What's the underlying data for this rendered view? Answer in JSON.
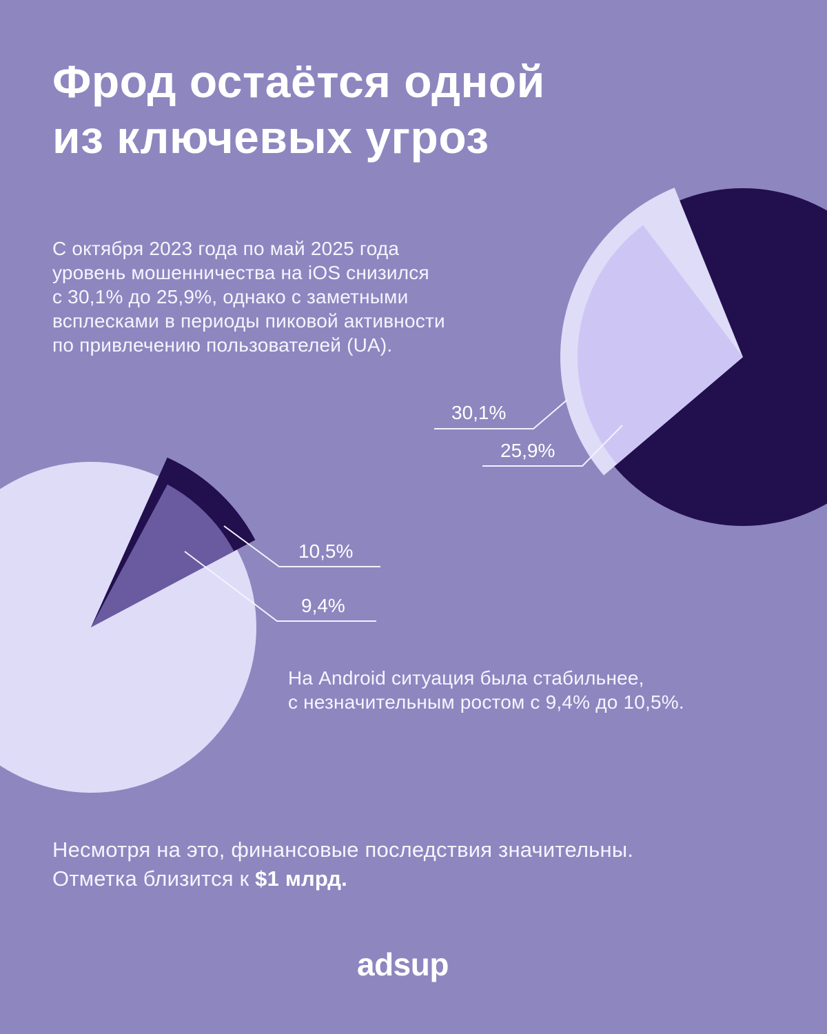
{
  "title": {
    "line1": "Фрод остаётся одной",
    "line2": "из ключевых угроз"
  },
  "ios_text": {
    "lines": [
      "С октября 2023 года по май 2025 года",
      "уровень мошенничества на iOS снизился",
      "с 30,1% до 25,9%, однако с заметными",
      "всплесками в периоды пиковой активности",
      "по привлечению пользователей (UA)."
    ]
  },
  "android_text": {
    "lines": [
      "На Android ситуация была стабильнее,",
      "с незначительным ростом с 9,4% до 10,5%."
    ]
  },
  "footer_text": {
    "line1": "Несмотря на это, финансовые последствия значительны.",
    "line2_prefix": "Отметка близится к ",
    "line2_bold": "$1 млрд."
  },
  "logo": "adsup",
  "colors": {
    "background": "#8e86bf",
    "dark": "#220f4e",
    "light": "#dfdcf8",
    "lavender": "#cdc6f5",
    "mid": "#6a5ba0",
    "text": "#ffffff"
  },
  "chart_data": [
    {
      "type": "pie",
      "title": "iOS fraud rate",
      "period": "Oct 2023 → May 2025",
      "series": [
        {
          "name": "Oct 2023",
          "value": 30.1,
          "label": "30,1%"
        },
        {
          "name": "May 2025",
          "value": 25.9,
          "label": "25,9%"
        }
      ],
      "remainder_color": "#220f4e",
      "legend": "none, leader-line labels on left"
    },
    {
      "type": "pie",
      "title": "Android fraud rate",
      "period": "Oct 2023 → May 2025",
      "series": [
        {
          "name": "May 2025",
          "value": 10.5,
          "label": "10,5%"
        },
        {
          "name": "Oct 2023",
          "value": 9.4,
          "label": "9,4%"
        }
      ],
      "remainder_color": "#dfdcf8",
      "legend": "none, leader-line labels on right"
    }
  ]
}
